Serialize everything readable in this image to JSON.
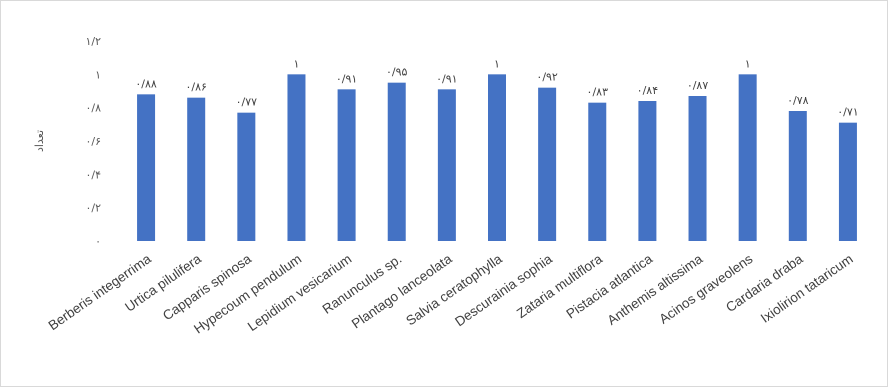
{
  "chart_data": {
    "type": "bar",
    "ylabel": "تعداد",
    "ylim": [
      0,
      1.2
    ],
    "y_ticks": [
      {
        "value": 0,
        "label": "۰"
      },
      {
        "value": 0.2,
        "label": "۰/۲"
      },
      {
        "value": 0.4,
        "label": "۰/۴"
      },
      {
        "value": 0.6,
        "label": "۰/۶"
      },
      {
        "value": 0.8,
        "label": "۰/۸"
      },
      {
        "value": 1.0,
        "label": "۱"
      },
      {
        "value": 1.2,
        "label": "۱/۲"
      }
    ],
    "categories": [
      "Berberis integerrima",
      "Urtica pilulifera",
      "Capparis spinosa",
      "Hypecoum pendulum",
      "Lepidium vesicarium",
      "Ranunculus sp.",
      "Plantago lanceolata",
      "Salvia ceratophylla",
      "Descurainia sophia",
      "Zataria multiflora",
      "Pistacia atlantica",
      "Anthemis altissima",
      "Acinos graveolens",
      "Cardaria draba",
      "Ixiolirion tataricum"
    ],
    "values": [
      0.88,
      0.86,
      0.77,
      1.0,
      0.91,
      0.95,
      0.91,
      1.0,
      0.92,
      0.83,
      0.84,
      0.87,
      1.0,
      0.78,
      0.71
    ],
    "data_labels": [
      "۰/۸۸",
      "۰/۸۶",
      "۰/۷۷",
      "۱",
      "۰/۹۱",
      "۰/۹۵",
      "۰/۹۱",
      "۱",
      "۰/۹۲",
      "۰/۸۳",
      "۰/۸۴",
      "۰/۸۷",
      "۱",
      "۰/۷۸",
      "۰/۷۱"
    ],
    "bar_color": "#4472c4",
    "grid": false,
    "legend": "none"
  }
}
